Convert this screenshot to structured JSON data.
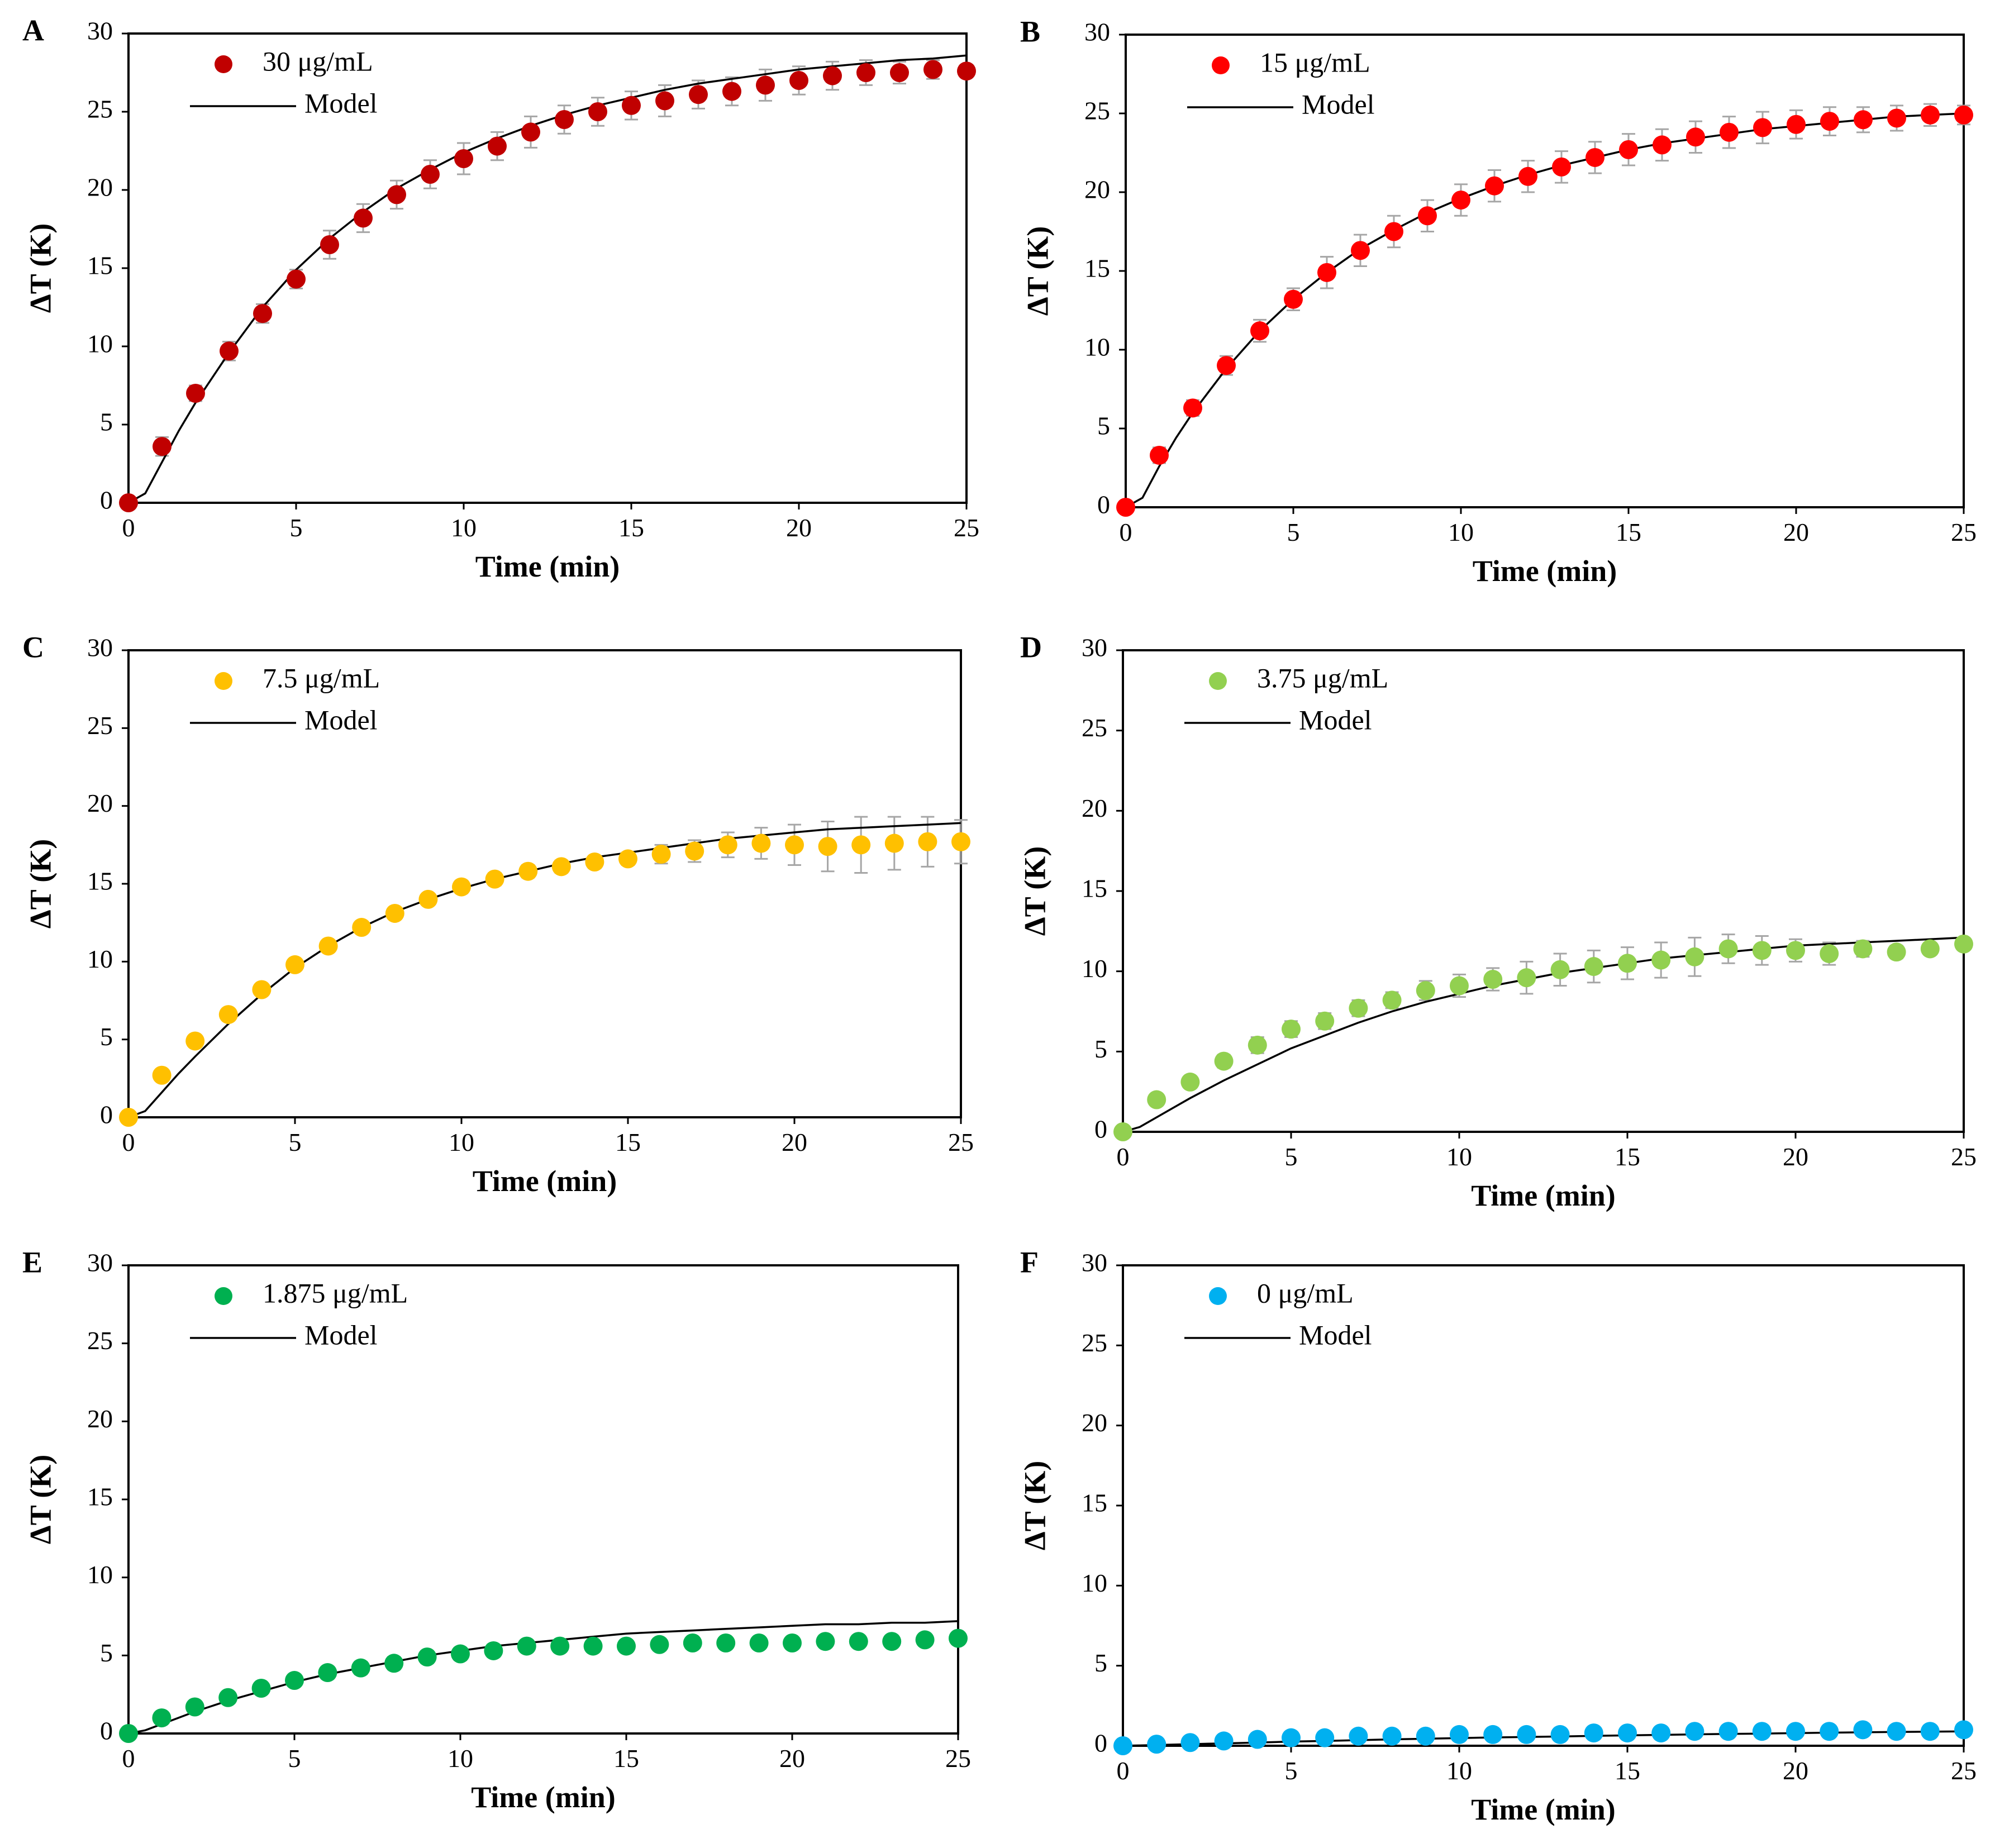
{
  "figure": {
    "panels": [
      "A",
      "B",
      "C",
      "D",
      "E",
      "F"
    ]
  },
  "chart_data": [
    {
      "panel": "A",
      "type": "scatter",
      "title": "",
      "xlabel": "Time (min)",
      "ylabel": "ΔT (K)",
      "xlim": [
        0,
        25
      ],
      "ylim": [
        0,
        30
      ],
      "x_ticks": [
        0,
        5,
        10,
        15,
        20,
        25
      ],
      "y_ticks": [
        0,
        5,
        10,
        15,
        20,
        25,
        30
      ],
      "grid": false,
      "legend_position": "top-left",
      "color": "#c00000",
      "series": [
        {
          "name": "30 μg/mL",
          "kind": "points",
          "x": [
            0,
            1,
            2,
            3,
            4,
            5,
            6,
            7,
            8,
            9,
            10,
            11,
            12,
            13,
            14,
            15,
            16,
            17,
            18,
            19,
            20,
            21,
            22,
            23,
            24,
            25
          ],
          "values": [
            0,
            3.6,
            7.0,
            9.7,
            12.1,
            14.3,
            16.5,
            18.2,
            19.7,
            21.0,
            22.0,
            22.8,
            23.7,
            24.5,
            25.0,
            25.4,
            25.7,
            26.1,
            26.3,
            26.7,
            27.0,
            27.3,
            27.5,
            27.5,
            27.7,
            27.6
          ],
          "error": [
            0.2,
            0.6,
            0.5,
            0.6,
            0.6,
            0.6,
            0.9,
            0.9,
            0.9,
            0.9,
            1.0,
            0.9,
            1.0,
            0.9,
            0.9,
            0.9,
            1.0,
            0.9,
            0.9,
            1.0,
            0.9,
            0.9,
            0.8,
            0.7,
            0.6,
            0.4
          ]
        },
        {
          "name": "Model",
          "kind": "line",
          "x": [
            0,
            0.5,
            1,
            1.5,
            2,
            3,
            4,
            5,
            6,
            7,
            8,
            9,
            10,
            11,
            12,
            13,
            14,
            15,
            16,
            17,
            18,
            19,
            20,
            21,
            22,
            23,
            24,
            25
          ],
          "values": [
            0,
            0.6,
            2.6,
            4.6,
            6.4,
            9.6,
            12.5,
            14.9,
            16.9,
            18.6,
            20.1,
            21.3,
            22.4,
            23.3,
            24.1,
            24.8,
            25.4,
            25.9,
            26.4,
            26.8,
            27.1,
            27.4,
            27.7,
            27.9,
            28.1,
            28.3,
            28.4,
            28.6
          ]
        }
      ]
    },
    {
      "panel": "B",
      "type": "scatter",
      "title": "",
      "xlabel": "Time (min)",
      "ylabel": "ΔT (K)",
      "xlim": [
        0,
        25
      ],
      "ylim": [
        0,
        30
      ],
      "x_ticks": [
        0,
        5,
        10,
        15,
        20,
        25
      ],
      "y_ticks": [
        0,
        5,
        10,
        15,
        20,
        25,
        30
      ],
      "grid": false,
      "legend_position": "top-left",
      "color": "#ff0000",
      "series": [
        {
          "name": "15 μg/mL",
          "kind": "points",
          "x": [
            0,
            1,
            2,
            3,
            4,
            5,
            6,
            7,
            8,
            9,
            10,
            11,
            12,
            13,
            14,
            15,
            16,
            17,
            18,
            19,
            20,
            21,
            22,
            23,
            24,
            25
          ],
          "values": [
            0,
            3.3,
            6.3,
            9.0,
            11.2,
            13.2,
            14.9,
            16.3,
            17.5,
            18.5,
            19.5,
            20.4,
            21.0,
            21.6,
            22.2,
            22.7,
            23.0,
            23.5,
            23.8,
            24.1,
            24.3,
            24.5,
            24.6,
            24.7,
            24.9,
            24.9
          ],
          "error": [
            0.2,
            0.5,
            0.5,
            0.6,
            0.7,
            0.7,
            1.0,
            1.0,
            1.0,
            1.0,
            1.0,
            1.0,
            1.0,
            1.0,
            1.0,
            1.0,
            1.0,
            1.0,
            1.0,
            1.0,
            0.9,
            0.9,
            0.8,
            0.8,
            0.7,
            0.6
          ]
        },
        {
          "name": "Model",
          "kind": "line",
          "x": [
            0,
            0.5,
            1,
            1.5,
            2,
            3,
            4,
            5,
            6,
            7,
            8,
            9,
            10,
            11,
            12,
            13,
            14,
            15,
            16,
            17,
            18,
            19,
            20,
            21,
            22,
            23,
            24,
            25
          ],
          "values": [
            0,
            0.6,
            2.6,
            4.4,
            6.0,
            8.8,
            11.2,
            13.2,
            14.9,
            16.4,
            17.6,
            18.7,
            19.6,
            20.4,
            21.1,
            21.7,
            22.2,
            22.7,
            23.1,
            23.4,
            23.7,
            24.0,
            24.2,
            24.4,
            24.6,
            24.8,
            24.9,
            25.0
          ]
        }
      ]
    },
    {
      "panel": "C",
      "type": "scatter",
      "title": "",
      "xlabel": "Time (min)",
      "ylabel": "ΔT (K)",
      "xlim": [
        0,
        25
      ],
      "ylim": [
        0,
        30
      ],
      "x_ticks": [
        0,
        5,
        10,
        15,
        20,
        25
      ],
      "y_ticks": [
        0,
        5,
        10,
        15,
        20,
        25,
        30
      ],
      "grid": false,
      "legend_position": "top-left",
      "color": "#ffc000",
      "series": [
        {
          "name": "7.5 μg/mL",
          "kind": "points",
          "x": [
            0,
            1,
            2,
            3,
            4,
            5,
            6,
            7,
            8,
            9,
            10,
            11,
            12,
            13,
            14,
            15,
            16,
            17,
            18,
            19,
            20,
            21,
            22,
            23,
            24,
            25
          ],
          "values": [
            0,
            2.7,
            4.9,
            6.6,
            8.2,
            9.8,
            11.0,
            12.2,
            13.1,
            14.0,
            14.8,
            15.3,
            15.8,
            16.1,
            16.4,
            16.6,
            16.9,
            17.1,
            17.5,
            17.6,
            17.5,
            17.4,
            17.5,
            17.6,
            17.7,
            17.7
          ],
          "error": [
            0.1,
            0.2,
            0.2,
            0.2,
            0.3,
            0.3,
            0.3,
            0.3,
            0.3,
            0.3,
            0.4,
            0.4,
            0.4,
            0.4,
            0.4,
            0.4,
            0.6,
            0.7,
            0.8,
            1.0,
            1.3,
            1.6,
            1.8,
            1.7,
            1.6,
            1.4
          ]
        },
        {
          "name": "Model",
          "kind": "line",
          "x": [
            0,
            0.5,
            1,
            1.5,
            2,
            3,
            4,
            5,
            6,
            7,
            8,
            9,
            10,
            11,
            12,
            13,
            14,
            15,
            16,
            17,
            18,
            19,
            20,
            21,
            22,
            23,
            24,
            25
          ],
          "values": [
            0,
            0.4,
            1.6,
            2.8,
            3.9,
            6.0,
            7.9,
            9.6,
            11.0,
            12.2,
            13.2,
            14.0,
            14.7,
            15.3,
            15.8,
            16.3,
            16.7,
            17.0,
            17.3,
            17.6,
            17.9,
            18.1,
            18.3,
            18.5,
            18.6,
            18.7,
            18.8,
            18.9
          ]
        }
      ]
    },
    {
      "panel": "D",
      "type": "scatter",
      "title": "",
      "xlabel": "Time (min)",
      "ylabel": "ΔT (K)",
      "xlim": [
        0,
        25
      ],
      "ylim": [
        0,
        30
      ],
      "x_ticks": [
        0,
        5,
        10,
        15,
        20,
        25
      ],
      "y_ticks": [
        0,
        5,
        10,
        15,
        20,
        25,
        30
      ],
      "grid": false,
      "legend_position": "top-left",
      "color": "#92d050",
      "series": [
        {
          "name": "3.75 μg/mL",
          "kind": "points",
          "x": [
            0,
            1,
            2,
            3,
            4,
            5,
            6,
            7,
            8,
            9,
            10,
            11,
            12,
            13,
            14,
            15,
            16,
            17,
            18,
            19,
            20,
            21,
            22,
            23,
            24,
            25
          ],
          "values": [
            0,
            2.0,
            3.1,
            4.4,
            5.4,
            6.4,
            6.9,
            7.7,
            8.2,
            8.8,
            9.1,
            9.5,
            9.6,
            10.1,
            10.3,
            10.5,
            10.7,
            10.9,
            11.4,
            11.3,
            11.3,
            11.1,
            11.4,
            11.2,
            11.4,
            11.7
          ],
          "error": [
            0.1,
            0.2,
            0.3,
            0.4,
            0.5,
            0.5,
            0.5,
            0.5,
            0.5,
            0.6,
            0.7,
            0.7,
            1.0,
            1.0,
            1.0,
            1.0,
            1.1,
            1.2,
            0.9,
            0.9,
            0.7,
            0.7,
            0.5,
            0.4,
            0.3,
            0.2
          ]
        },
        {
          "name": "Model",
          "kind": "line",
          "x": [
            0,
            0.5,
            1,
            1.5,
            2,
            3,
            4,
            5,
            6,
            7,
            8,
            9,
            10,
            11,
            12,
            13,
            14,
            15,
            16,
            17,
            18,
            19,
            20,
            21,
            22,
            23,
            24,
            25
          ],
          "values": [
            0,
            0.3,
            0.9,
            1.5,
            2.1,
            3.2,
            4.2,
            5.2,
            6.0,
            6.8,
            7.5,
            8.1,
            8.6,
            9.1,
            9.5,
            9.9,
            10.2,
            10.5,
            10.8,
            11.0,
            11.2,
            11.4,
            11.6,
            11.7,
            11.8,
            11.9,
            12.0,
            12.1
          ]
        }
      ]
    },
    {
      "panel": "E",
      "type": "scatter",
      "title": "",
      "xlabel": "Time (min)",
      "ylabel": "ΔT (K)",
      "xlim": [
        0,
        25
      ],
      "ylim": [
        0,
        30
      ],
      "x_ticks": [
        0,
        5,
        10,
        15,
        20,
        25
      ],
      "y_ticks": [
        0,
        5,
        10,
        15,
        20,
        25,
        30
      ],
      "grid": false,
      "legend_position": "top-left",
      "color": "#00b050",
      "series": [
        {
          "name": "1.875 μg/mL",
          "kind": "points",
          "x": [
            0,
            1,
            2,
            3,
            4,
            5,
            6,
            7,
            8,
            9,
            10,
            11,
            12,
            13,
            14,
            15,
            16,
            17,
            18,
            19,
            20,
            21,
            22,
            23,
            24,
            25
          ],
          "values": [
            0,
            1.0,
            1.7,
            2.3,
            2.9,
            3.4,
            3.9,
            4.2,
            4.5,
            4.9,
            5.1,
            5.3,
            5.6,
            5.6,
            5.6,
            5.6,
            5.7,
            5.8,
            5.8,
            5.8,
            5.8,
            5.9,
            5.9,
            5.9,
            6.0,
            6.1
          ],
          "error": [
            0.1,
            0.2,
            0.2,
            0.2,
            0.3,
            0.3,
            0.3,
            0.4,
            0.4,
            0.4,
            0.4,
            0.4,
            0.3,
            0.3,
            0.3,
            0.3,
            0.3,
            0.3,
            0.3,
            0.3,
            0.3,
            0.3,
            0.3,
            0.3,
            0.3,
            0.3
          ]
        },
        {
          "name": "Model",
          "kind": "line",
          "x": [
            0,
            0.5,
            1,
            1.5,
            2,
            3,
            4,
            5,
            6,
            7,
            8,
            9,
            10,
            11,
            12,
            13,
            14,
            15,
            16,
            17,
            18,
            19,
            20,
            21,
            22,
            23,
            24,
            25
          ],
          "values": [
            0,
            0.2,
            0.6,
            1.0,
            1.4,
            2.1,
            2.7,
            3.3,
            3.8,
            4.2,
            4.6,
            5.0,
            5.3,
            5.6,
            5.8,
            6.0,
            6.2,
            6.4,
            6.5,
            6.6,
            6.7,
            6.8,
            6.9,
            7.0,
            7.0,
            7.1,
            7.1,
            7.2
          ]
        }
      ]
    },
    {
      "panel": "F",
      "type": "scatter",
      "title": "",
      "xlabel": "Time (min)",
      "ylabel": "ΔT (K)",
      "xlim": [
        0,
        25
      ],
      "ylim": [
        0,
        30
      ],
      "x_ticks": [
        0,
        5,
        10,
        15,
        20,
        25
      ],
      "y_ticks": [
        0,
        5,
        10,
        15,
        20,
        25,
        30
      ],
      "grid": false,
      "legend_position": "top-left",
      "color": "#00b0f0",
      "series": [
        {
          "name": "0 μg/mL",
          "kind": "points",
          "x": [
            0,
            1,
            2,
            3,
            4,
            5,
            6,
            7,
            8,
            9,
            10,
            11,
            12,
            13,
            14,
            15,
            16,
            17,
            18,
            19,
            20,
            21,
            22,
            23,
            24,
            25
          ],
          "values": [
            0,
            0.1,
            0.2,
            0.3,
            0.4,
            0.5,
            0.5,
            0.6,
            0.6,
            0.6,
            0.7,
            0.7,
            0.7,
            0.7,
            0.8,
            0.8,
            0.8,
            0.9,
            0.9,
            0.9,
            0.9,
            0.9,
            1.0,
            0.9,
            0.9,
            1.0
          ],
          "error": [
            0,
            0,
            0,
            0,
            0,
            0,
            0,
            0,
            0,
            0,
            0,
            0,
            0,
            0,
            0,
            0,
            0,
            0,
            0,
            0,
            0,
            0,
            0,
            0,
            0,
            0
          ]
        },
        {
          "name": "Model",
          "kind": "line",
          "x": [
            0,
            0.5,
            1,
            2,
            3,
            4,
            5,
            6,
            7,
            8,
            9,
            10,
            11,
            12,
            13,
            14,
            15,
            16,
            17,
            18,
            19,
            20,
            21,
            22,
            23,
            24,
            25
          ],
          "values": [
            0,
            0.02,
            0.05,
            0.1,
            0.15,
            0.2,
            0.26,
            0.3,
            0.35,
            0.4,
            0.44,
            0.48,
            0.52,
            0.55,
            0.58,
            0.62,
            0.65,
            0.68,
            0.71,
            0.74,
            0.76,
            0.79,
            0.82,
            0.84,
            0.86,
            0.88,
            0.9
          ]
        }
      ]
    }
  ]
}
